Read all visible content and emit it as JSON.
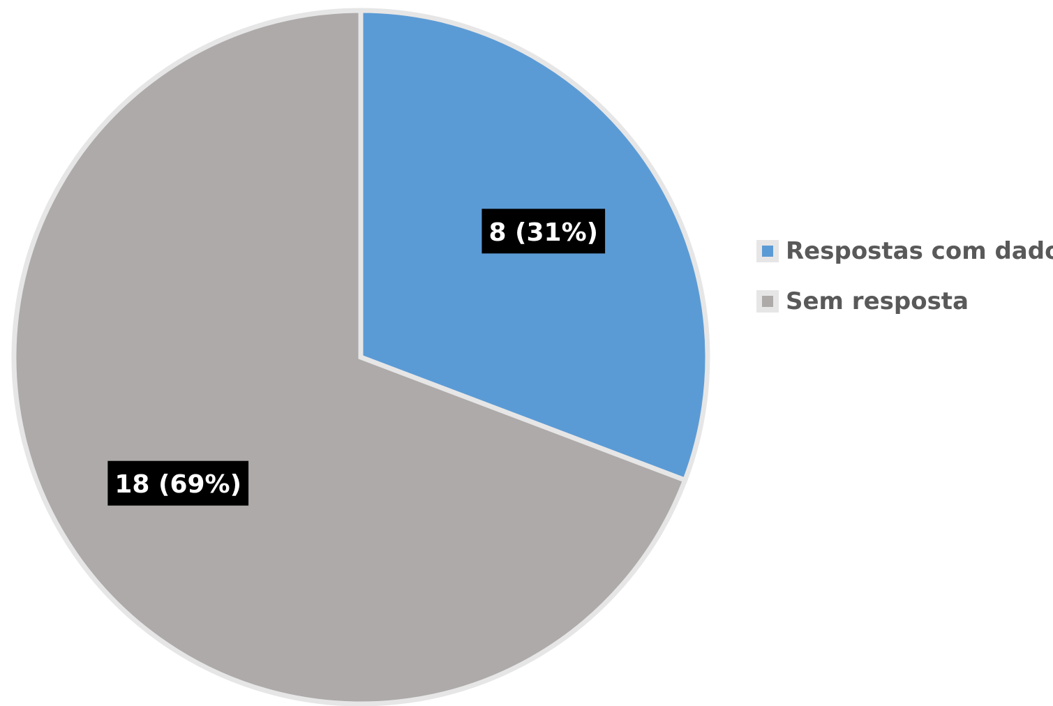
{
  "chart_data": {
    "type": "pie",
    "categories": [
      "Respostas com dados",
      "Sem resposta"
    ],
    "values": [
      8,
      18
    ],
    "percentages": [
      31,
      69
    ],
    "data_labels": [
      "8 (31%)",
      "18 (69%)"
    ],
    "colors": [
      "#5b9bd5",
      "#aeaaaa"
    ],
    "slice_border_color": "#e7e6e6",
    "label_background": "#000000",
    "start_angle": "12 o'clock",
    "direction": "clockwise",
    "legend": {
      "position": "right",
      "entries": [
        "Respostas com dados",
        "Sem resposta"
      ]
    }
  }
}
